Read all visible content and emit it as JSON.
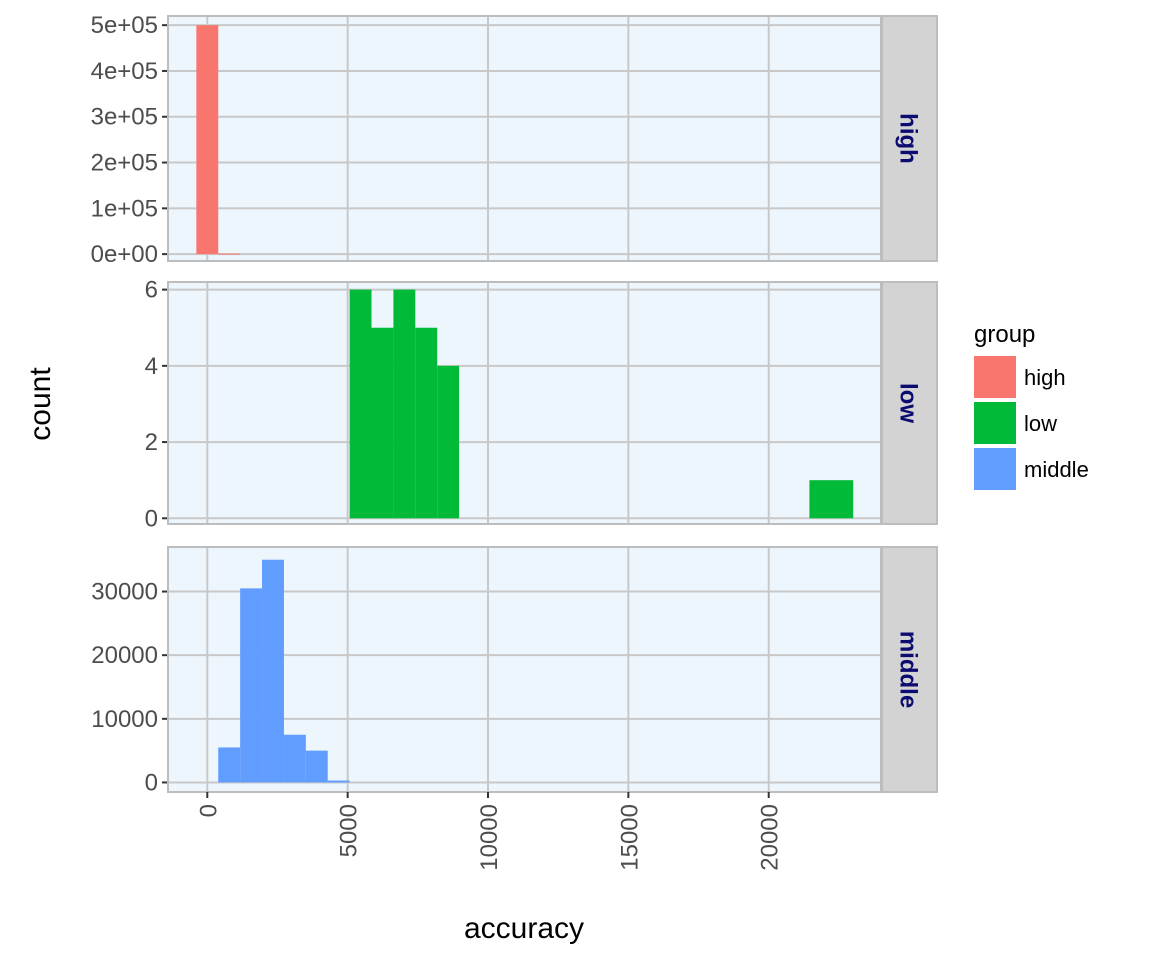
{
  "chart_data": {
    "type": "bar",
    "subtype": "faceted-histogram",
    "xlabel": "accuracy",
    "ylabel": "count",
    "xlim": [
      -1400,
      24000
    ],
    "x_ticks": [
      0,
      5000,
      10000,
      15000,
      20000
    ],
    "x_tick_labels": [
      "0",
      "5000",
      "10000",
      "15000",
      "20000"
    ],
    "x_tick_rotation": -90,
    "grid": true,
    "panel_background": "#eef6fd",
    "grid_color": "#c8c8c8",
    "strip_background": "#d3d3d3",
    "strip_text_color": "#0b0b70",
    "bin_width": 780,
    "legend": {
      "title": "group",
      "position": "right",
      "entries": [
        {
          "label": "high",
          "color": "#f8766d"
        },
        {
          "label": "low",
          "color": "#00ba38"
        },
        {
          "label": "middle",
          "color": "#619cff"
        }
      ]
    },
    "facets": [
      {
        "strip": "high",
        "color": "#f8766d",
        "ylim": [
          -15000,
          520000
        ],
        "y_ticks": [
          0,
          100000,
          200000,
          300000,
          400000,
          500000
        ],
        "y_tick_labels": [
          "0e+00",
          "1e+05",
          "2e+05",
          "3e+05",
          "4e+05",
          "5e+05"
        ],
        "bins": [
          {
            "x0": -390,
            "x1": 390,
            "count": 500000
          },
          {
            "x0": 390,
            "x1": 1170,
            "count": 1200
          }
        ]
      },
      {
        "strip": "low",
        "color": "#00ba38",
        "ylim": [
          -0.15,
          6.2
        ],
        "y_ticks": [
          0,
          2,
          4,
          6
        ],
        "y_tick_labels": [
          "0",
          "2",
          "4",
          "6"
        ],
        "bins": [
          {
            "x0": 5070,
            "x1": 5850,
            "count": 6
          },
          {
            "x0": 5850,
            "x1": 6630,
            "count": 5
          },
          {
            "x0": 6630,
            "x1": 7410,
            "count": 6
          },
          {
            "x0": 7410,
            "x1": 8190,
            "count": 5
          },
          {
            "x0": 8190,
            "x1": 8970,
            "count": 4
          },
          {
            "x0": 21450,
            "x1": 23010,
            "count": 1
          }
        ]
      },
      {
        "strip": "middle",
        "color": "#619cff",
        "ylim": [
          -1500,
          37000
        ],
        "y_ticks": [
          0,
          10000,
          20000,
          30000
        ],
        "y_tick_labels": [
          "0",
          "10000",
          "20000",
          "30000"
        ],
        "bins": [
          {
            "x0": 390,
            "x1": 1170,
            "count": 5500
          },
          {
            "x0": 1170,
            "x1": 1950,
            "count": 30500
          },
          {
            "x0": 1950,
            "x1": 2730,
            "count": 35000
          },
          {
            "x0": 2730,
            "x1": 3510,
            "count": 7500
          },
          {
            "x0": 3510,
            "x1": 4290,
            "count": 5000
          },
          {
            "x0": 4290,
            "x1": 5070,
            "count": 300
          }
        ]
      }
    ]
  }
}
